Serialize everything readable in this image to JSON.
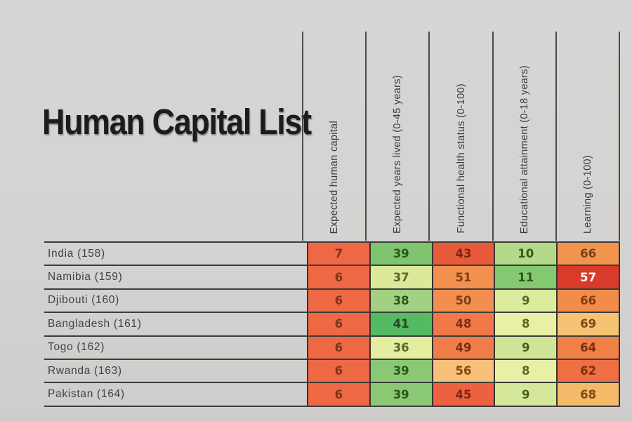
{
  "title": "Human Capital List",
  "colors": {
    "background": "#d5d3d1",
    "grid_line": "#3c3c3c",
    "header_line": "#4a4a4a",
    "title_text": "#1c1c1c",
    "low_score_red": "#d93b2a",
    "mid_score_orange": "#ee6843",
    "high_score_green": "#54bb63"
  },
  "table": {
    "columns": [
      "Expected human capital",
      "Expected years lived (0-45 years)",
      "Functional health status (0-100)",
      "Educational attainment (0-18 years)",
      "Learning (0-100)"
    ],
    "rows": [
      {
        "country": "India (158)",
        "cells": [
          {
            "v": "7",
            "bg": "#ee6843",
            "fg": "#7f3318"
          },
          {
            "v": "39",
            "bg": "#7fc46e",
            "fg": "#2d5320"
          },
          {
            "v": "43",
            "bg": "#e75b3a",
            "fg": "#7c2410"
          },
          {
            "v": "10",
            "bg": "#b4d988",
            "fg": "#33571f"
          },
          {
            "v": "66",
            "bg": "#f2954f",
            "fg": "#7d3f12"
          }
        ]
      },
      {
        "country": "Namibia (159)",
        "cells": [
          {
            "v": "6",
            "bg": "#ee6843",
            "fg": "#7f3318"
          },
          {
            "v": "37",
            "bg": "#dbe999",
            "fg": "#57682a"
          },
          {
            "v": "51",
            "bg": "#f2914e",
            "fg": "#7d3f12"
          },
          {
            "v": "11",
            "bg": "#85c872",
            "fg": "#2d5320"
          },
          {
            "v": "57",
            "bg": "#d93b2a",
            "fg": "#ffffff"
          }
        ]
      },
      {
        "country": "Djibouti (160)",
        "cells": [
          {
            "v": "6",
            "bg": "#ee6843",
            "fg": "#7f3318"
          },
          {
            "v": "38",
            "bg": "#a2d181",
            "fg": "#2f5520"
          },
          {
            "v": "50",
            "bg": "#f28f4e",
            "fg": "#7d3f12"
          },
          {
            "v": "9",
            "bg": "#ddeb9f",
            "fg": "#57682a"
          },
          {
            "v": "66",
            "bg": "#f18c4a",
            "fg": "#7d3f12"
          }
        ]
      },
      {
        "country": "Bangladesh (161)",
        "cells": [
          {
            "v": "6",
            "bg": "#ee6843",
            "fg": "#7f3318"
          },
          {
            "v": "41",
            "bg": "#54bb63",
            "fg": "#1f4a1c"
          },
          {
            "v": "48",
            "bg": "#f07849",
            "fg": "#7c2d10"
          },
          {
            "v": "8",
            "bg": "#e9f0a6",
            "fg": "#57682a"
          },
          {
            "v": "69",
            "bg": "#f6c375",
            "fg": "#7d4a16"
          }
        ]
      },
      {
        "country": "Togo (162)",
        "cells": [
          {
            "v": "6",
            "bg": "#ee6843",
            "fg": "#7f3318"
          },
          {
            "v": "36",
            "bg": "#e4eda0",
            "fg": "#57682a"
          },
          {
            "v": "49",
            "bg": "#f07d49",
            "fg": "#7c2d10"
          },
          {
            "v": "9",
            "bg": "#cfe497",
            "fg": "#47601f"
          },
          {
            "v": "64",
            "bg": "#ef8046",
            "fg": "#7c2d10"
          }
        ]
      },
      {
        "country": "Rwanda (163)",
        "cells": [
          {
            "v": "6",
            "bg": "#ee6843",
            "fg": "#7f3318"
          },
          {
            "v": "39",
            "bg": "#8bc873",
            "fg": "#2d5320"
          },
          {
            "v": "56",
            "bg": "#f8c078",
            "fg": "#7d4a16"
          },
          {
            "v": "8",
            "bg": "#e9f0a6",
            "fg": "#57682a"
          },
          {
            "v": "62",
            "bg": "#ee7042",
            "fg": "#7c2d10"
          }
        ]
      },
      {
        "country": "Pakistan (164)",
        "cells": [
          {
            "v": "6",
            "bg": "#ee6843",
            "fg": "#7f3318"
          },
          {
            "v": "39",
            "bg": "#8bc873",
            "fg": "#2d5320"
          },
          {
            "v": "45",
            "bg": "#ec6240",
            "fg": "#7c2410"
          },
          {
            "v": "9",
            "bg": "#d4e79b",
            "fg": "#47601f"
          },
          {
            "v": "68",
            "bg": "#f5ba69",
            "fg": "#7d4a16"
          }
        ]
      }
    ]
  },
  "chart_data": {
    "type": "heatmap",
    "title": "Human Capital List",
    "row_labels": [
      "India (158)",
      "Namibia (159)",
      "Djibouti (160)",
      "Bangladesh (161)",
      "Togo (162)",
      "Rwanda (163)",
      "Pakistan (164)"
    ],
    "columns": [
      "Expected human capital",
      "Expected years lived (0-45 years)",
      "Functional health status (0-100)",
      "Educational attainment (0-18 years)",
      "Learning (0-100)"
    ],
    "values": [
      [
        7,
        39,
        43,
        10,
        66
      ],
      [
        6,
        37,
        51,
        11,
        57
      ],
      [
        6,
        38,
        50,
        9,
        66
      ],
      [
        6,
        41,
        48,
        8,
        69
      ],
      [
        6,
        36,
        49,
        9,
        64
      ],
      [
        6,
        39,
        56,
        8,
        62
      ],
      [
        6,
        39,
        45,
        9,
        68
      ]
    ],
    "layout_hints": {
      "row_labels_position": "left",
      "column_headers": "rotated 90deg, bottom-aligned",
      "color_scale": "red/orange = worse, yellow/green = better, per-column shading"
    }
  }
}
